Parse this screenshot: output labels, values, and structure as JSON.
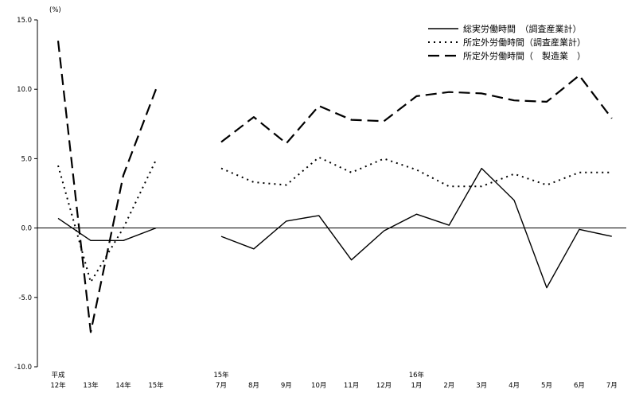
{
  "chart_data": {
    "type": "line",
    "ylabel": "(%)",
    "ylim": [
      -10.0,
      15.0
    ],
    "yticks": [
      "15.0",
      "10.0",
      "5.0",
      "0.0",
      "-5.0",
      "-10.0"
    ],
    "annual": {
      "categories": [
        {
          "top": "平成",
          "bottom": "12年"
        },
        {
          "top": "",
          "bottom": "13年"
        },
        {
          "top": "",
          "bottom": "14年"
        },
        {
          "top": "",
          "bottom": "15年"
        }
      ]
    },
    "monthly": {
      "categories": [
        {
          "top": "15年",
          "bottom": "7月"
        },
        {
          "top": "",
          "bottom": "8月"
        },
        {
          "top": "",
          "bottom": "9月"
        },
        {
          "top": "",
          "bottom": "10月"
        },
        {
          "top": "",
          "bottom": "11月"
        },
        {
          "top": "",
          "bottom": "12月"
        },
        {
          "top": "16年",
          "bottom": "1月"
        },
        {
          "top": "",
          "bottom": "2月"
        },
        {
          "top": "",
          "bottom": "3月"
        },
        {
          "top": "",
          "bottom": "4月"
        },
        {
          "top": "",
          "bottom": "5月"
        },
        {
          "top": "",
          "bottom": "6月"
        },
        {
          "top": "",
          "bottom": "7月"
        }
      ]
    },
    "series": [
      {
        "name": "総実労働時間　（調査産業計）",
        "style": "solid",
        "color": "#000000",
        "annual": [
          0.7,
          -0.9,
          -0.9,
          0.0
        ],
        "monthly": [
          -0.6,
          -1.5,
          0.5,
          0.9,
          -2.3,
          -0.2,
          1.0,
          0.2,
          4.3,
          2.0,
          -4.3,
          -0.1,
          -0.6
        ]
      },
      {
        "name": "所定外労働時間（調査産業計）",
        "style": "dotted",
        "color": "#000000",
        "annual": [
          4.5,
          -3.9,
          0.0,
          4.9
        ],
        "monthly": [
          4.3,
          3.3,
          3.1,
          5.1,
          4.0,
          5.0,
          4.2,
          3.0,
          3.0,
          3.9,
          3.1,
          4.0,
          4.0
        ]
      },
      {
        "name": "所定外労働時間（　製造業　）",
        "style": "dashed",
        "color": "#000000",
        "annual": [
          13.5,
          -7.5,
          3.8,
          10.0
        ],
        "monthly": [
          6.2,
          8.0,
          6.1,
          8.8,
          7.8,
          7.7,
          9.5,
          9.8,
          9.7,
          9.2,
          9.1,
          11.0,
          7.9
        ]
      }
    ],
    "legend_position": "top-right",
    "grid": false
  }
}
